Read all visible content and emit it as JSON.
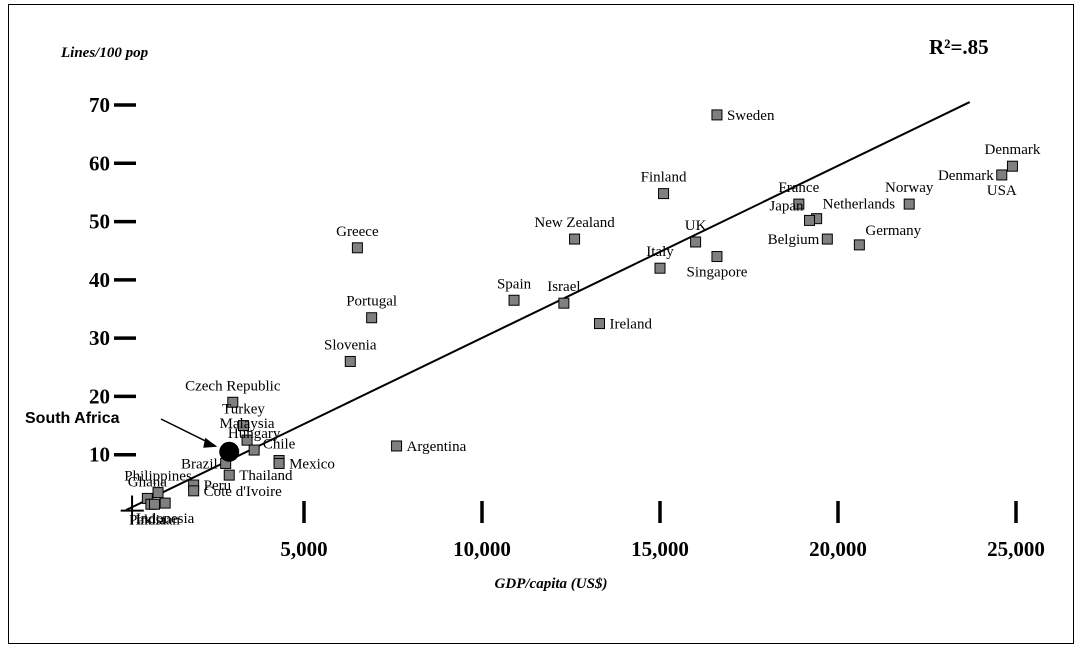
{
  "chart_data": {
    "type": "scatter",
    "ylabel": "Lines/100 pop",
    "xlabel": "GDP/capita (US$)",
    "annotation_r2": "R²=.85",
    "xlim": [
      0,
      25500
    ],
    "ylim": [
      0,
      73
    ],
    "x_ticks": [
      {
        "value": 5000,
        "label": "5,000"
      },
      {
        "value": 10000,
        "label": "10,000"
      },
      {
        "value": 15000,
        "label": "15,000"
      },
      {
        "value": 20000,
        "label": "20,000"
      },
      {
        "value": 25000,
        "label": "25,000"
      }
    ],
    "y_ticks": [
      {
        "value": 10,
        "label": "10"
      },
      {
        "value": 20,
        "label": "20"
      },
      {
        "value": 30,
        "label": "30"
      },
      {
        "value": 40,
        "label": "40"
      },
      {
        "value": 50,
        "label": "50"
      },
      {
        "value": 60,
        "label": "60"
      },
      {
        "value": 70,
        "label": "70"
      }
    ],
    "trendline": {
      "x": [
        0,
        23700
      ],
      "y": [
        0.5,
        70.5
      ]
    },
    "points": [
      {
        "name": "Sweden",
        "x": 16600,
        "y": 68.3,
        "label_pos": "right"
      },
      {
        "name": "Denmark",
        "x": 24900,
        "y": 59.5,
        "label_pos": "above"
      },
      {
        "name": "Denmark",
        "x": 24600,
        "y": 58.0,
        "label_pos": "left"
      },
      {
        "name": "USA",
        "x": 24600,
        "y": 58.0,
        "label_pos": "below"
      },
      {
        "name": "Norway",
        "x": 22000,
        "y": 53.0,
        "label_pos": "above"
      },
      {
        "name": "France",
        "x": 18900,
        "y": 53.0,
        "label_pos": "above"
      },
      {
        "name": "Netherlands",
        "x": 19400,
        "y": 50.5,
        "label_pos": "right-above"
      },
      {
        "name": "Japan",
        "x": 19200,
        "y": 50.2,
        "label_pos": "left-above"
      },
      {
        "name": "Finland",
        "x": 15100,
        "y": 54.8,
        "label_pos": "above"
      },
      {
        "name": "Germany",
        "x": 20600,
        "y": 46.0,
        "label_pos": "right-above"
      },
      {
        "name": "Belgium",
        "x": 19700,
        "y": 47.0,
        "label_pos": "left"
      },
      {
        "name": "UK",
        "x": 16000,
        "y": 46.5,
        "label_pos": "above"
      },
      {
        "name": "Singapore",
        "x": 16600,
        "y": 44.0,
        "label_pos": "below"
      },
      {
        "name": "Italy",
        "x": 15000,
        "y": 42.0,
        "label_pos": "above"
      },
      {
        "name": "New Zealand",
        "x": 12600,
        "y": 47.0,
        "label_pos": "above"
      },
      {
        "name": "Greece",
        "x": 6500,
        "y": 45.5,
        "label_pos": "above"
      },
      {
        "name": "Spain",
        "x": 10900,
        "y": 36.5,
        "label_pos": "above"
      },
      {
        "name": "Israel",
        "x": 12300,
        "y": 36.0,
        "label_pos": "above"
      },
      {
        "name": "Ireland",
        "x": 13300,
        "y": 32.5,
        "label_pos": "right"
      },
      {
        "name": "Portugal",
        "x": 6900,
        "y": 33.5,
        "label_pos": "above"
      },
      {
        "name": "Slovenia",
        "x": 6300,
        "y": 26.0,
        "label_pos": "above"
      },
      {
        "name": "Czech Republic",
        "x": 3000,
        "y": 19.0,
        "label_pos": "above"
      },
      {
        "name": "Turkey",
        "x": 3300,
        "y": 15.0,
        "label_pos": "above"
      },
      {
        "name": "Malaysia",
        "x": 3400,
        "y": 12.5,
        "label_pos": "above"
      },
      {
        "name": "Hungary",
        "x": 3600,
        "y": 10.8,
        "label_pos": "above"
      },
      {
        "name": "Chile",
        "x": 4300,
        "y": 9.0,
        "label_pos": "above"
      },
      {
        "name": "Mexico",
        "x": 4300,
        "y": 8.5,
        "label_pos": "right"
      },
      {
        "name": "Argentina",
        "x": 7600,
        "y": 11.5,
        "label_pos": "right"
      },
      {
        "name": "Brazil",
        "x": 2800,
        "y": 8.5,
        "label_pos": "left"
      },
      {
        "name": "Thailand",
        "x": 2900,
        "y": 6.5,
        "label_pos": "right"
      },
      {
        "name": "Peru",
        "x": 1900,
        "y": 4.8,
        "label_pos": "right"
      },
      {
        "name": "Cote d'Ivoire",
        "x": 1900,
        "y": 3.8,
        "label_pos": "right"
      },
      {
        "name": "Philippines",
        "x": 900,
        "y": 3.5,
        "label_pos": "above"
      },
      {
        "name": "Ghana",
        "x": 600,
        "y": 2.5,
        "label_pos": "above"
      },
      {
        "name": "India",
        "x": 700,
        "y": 1.5,
        "label_pos": "below"
      },
      {
        "name": "Pakistan",
        "x": 800,
        "y": 1.5,
        "label_pos": "below"
      },
      {
        "name": "Indonesia",
        "x": 1100,
        "y": 1.7,
        "label_pos": "below"
      }
    ],
    "highlight": {
      "name": "South Africa",
      "x": 2900,
      "y": 10.5,
      "label": "South Africa"
    },
    "colors": {
      "marker_fill": "#808080",
      "marker_stroke": "#000000",
      "highlight": "#000000",
      "line": "#000000"
    }
  }
}
